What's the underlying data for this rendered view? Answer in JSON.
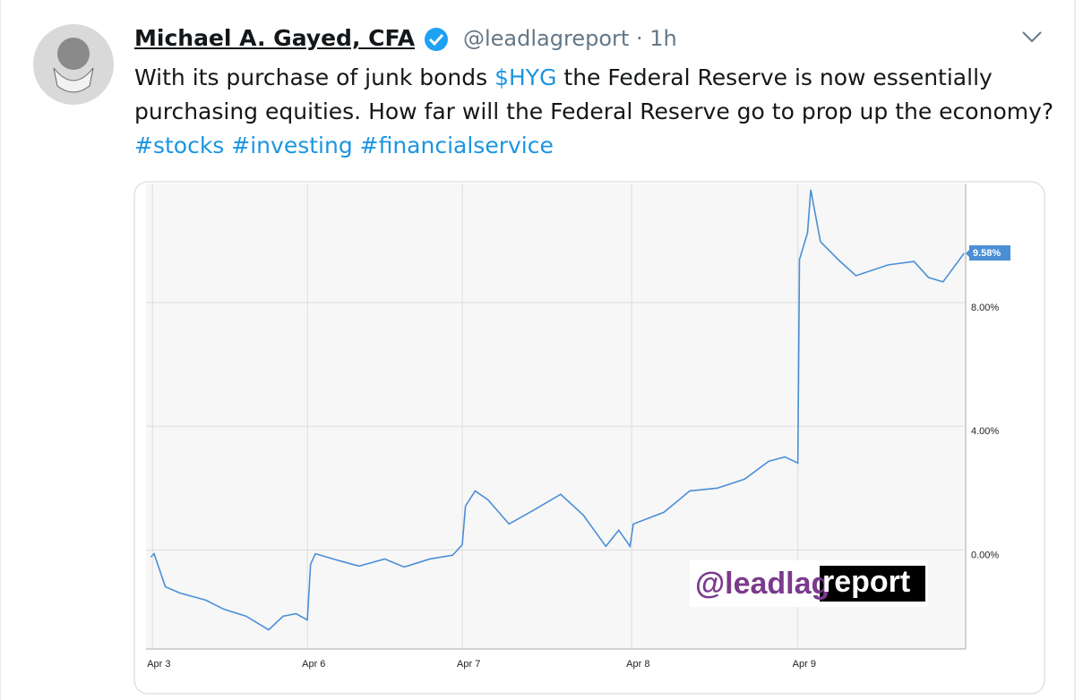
{
  "tweet": {
    "author": "Michael A. Gayed, CFA",
    "handle": "@leadlagreport",
    "separator": "·",
    "time": "1h",
    "text_parts": [
      {
        "text": "With its purchase of junk bonds "
      },
      {
        "text": "$HYG",
        "link": true
      },
      {
        "text": " the Federal Reserve is now essentially purchasing equities. How far will the Federal Reserve go to prop up the economy? "
      },
      {
        "text": "#stocks",
        "link": true
      },
      {
        "text": " "
      },
      {
        "text": "#investing",
        "link": true
      },
      {
        "text": " "
      },
      {
        "text": "#financialservice",
        "link": true
      }
    ]
  },
  "chart_data": {
    "type": "line",
    "watermark": [
      "@leadlag",
      "report"
    ],
    "end_label": "9.58%",
    "series": [
      {
        "color": "#4a8fd6",
        "x": [
          -0.01,
          0.01,
          0.08,
          0.17,
          0.33,
          0.44,
          0.58,
          0.72,
          0.81,
          0.89,
          0.96,
          0.98,
          1.01,
          1.14,
          1.28,
          1.44,
          1.56,
          1.72,
          1.86,
          1.92,
          1.94,
          2.0,
          2.08,
          2.21,
          2.36,
          2.53,
          2.67,
          2.81,
          2.89,
          2.96,
          2.98,
          3.17,
          3.33,
          3.5,
          3.67,
          3.82,
          3.92,
          4.0,
          4.01,
          4.06,
          4.08,
          4.14,
          4.25,
          4.36,
          4.56,
          4.72,
          4.81,
          4.9,
          5.03
        ],
        "values": [
          -0.23,
          -0.12,
          -1.19,
          -1.39,
          -1.62,
          -1.91,
          -2.14,
          -2.58,
          -2.14,
          -2.06,
          -2.26,
          -0.46,
          -0.12,
          -0.32,
          -0.52,
          -0.29,
          -0.55,
          -0.29,
          -0.17,
          0.17,
          1.42,
          1.91,
          1.62,
          0.84,
          1.28,
          1.8,
          1.13,
          0.12,
          0.64,
          0.12,
          0.84,
          1.22,
          1.91,
          2.0,
          2.29,
          2.87,
          3.01,
          2.81,
          9.39,
          10.26,
          11.65,
          9.97,
          9.39,
          8.87,
          9.22,
          9.33,
          8.81,
          8.67,
          9.59
        ]
      }
    ],
    "xlim": [
      -0.04,
      5.04
    ],
    "xticks": [
      {
        "value": 0,
        "label": "Apr 3"
      },
      {
        "value": 0.96,
        "label": "Apr 6"
      },
      {
        "value": 1.92,
        "label": "Apr 7"
      },
      {
        "value": 2.97,
        "label": "Apr 8"
      },
      {
        "value": 4.0,
        "label": "Apr 9"
      }
    ],
    "ylim": [
      -3.2,
      11.85
    ],
    "yticks": [
      {
        "value": 0,
        "label": "0.00%"
      },
      {
        "value": 4,
        "label": "4.00%"
      },
      {
        "value": 8,
        "label": "8.00%"
      }
    ],
    "grid": true
  }
}
